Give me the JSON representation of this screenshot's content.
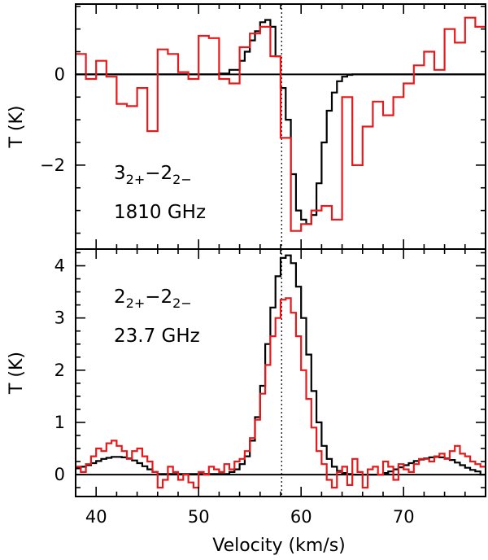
{
  "chart_data": [
    {
      "type": "line",
      "panel": "top",
      "annotation": {
        "transition": {
          "j": "3",
          "jsub": "2+",
          "dash": "−",
          "k": "2",
          "ksub": "2−"
        },
        "frequency": "1810 GHz"
      },
      "ylabel": "T (K)",
      "xlabel": "",
      "xlim": [
        38,
        78
      ],
      "ylim": [
        -3.85,
        1.55
      ],
      "x_ticks": [
        40,
        50,
        60,
        70
      ],
      "y_ticks": [
        -2,
        0
      ],
      "y_tick_labels": [
        "−2",
        "0"
      ],
      "reference_velocity": 58.1,
      "baseline": 0,
      "series": [
        {
          "color": "#000000",
          "style": "histogram",
          "x": [
            38,
            52,
            53,
            54,
            54.5,
            55,
            55.5,
            56,
            56.5,
            57,
            57.5,
            58,
            58.5,
            59,
            59.5,
            60,
            60.5,
            61,
            61.5,
            62,
            62.5,
            63,
            63.5,
            64,
            64.5,
            65,
            78
          ],
          "y": [
            0,
            0.02,
            0.1,
            0.3,
            0.5,
            0.75,
            0.95,
            1.15,
            1.2,
            1.05,
            0.4,
            -0.3,
            -1.0,
            -2.2,
            -3.0,
            -3.2,
            -3.3,
            -3.1,
            -2.4,
            -1.5,
            -0.8,
            -0.4,
            -0.15,
            -0.05,
            -0.01,
            0,
            0
          ]
        },
        {
          "color": "#e41a1c",
          "style": "histogram",
          "x": [
            38,
            39,
            40,
            41,
            42,
            43,
            44,
            45,
            46,
            47,
            48,
            49,
            50,
            51,
            52,
            53,
            54,
            55,
            56,
            57,
            58,
            59,
            60,
            61,
            62,
            63,
            64,
            65,
            66,
            67,
            68,
            69,
            70,
            71,
            72,
            73,
            74,
            75,
            76,
            77
          ],
          "y": [
            0.45,
            -0.1,
            0.3,
            -0.05,
            -0.65,
            -0.7,
            -0.3,
            -1.25,
            0.55,
            0.45,
            0.05,
            -0.1,
            0.85,
            0.8,
            -0.1,
            -0.2,
            0.6,
            0.9,
            1.05,
            0.4,
            -1.4,
            -3.45,
            -3.3,
            -3.0,
            -2.9,
            -3.2,
            -0.5,
            -2.0,
            -1.15,
            -0.6,
            -0.9,
            -0.5,
            -0.2,
            0.2,
            0.5,
            0.1,
            1.0,
            0.7,
            1.25,
            1.05
          ]
        }
      ]
    },
    {
      "type": "line",
      "panel": "bottom",
      "annotation": {
        "transition": {
          "j": "2",
          "jsub": "2+",
          "dash": "−",
          "k": "2",
          "ksub": "2−"
        },
        "frequency": "23.7 GHz"
      },
      "ylabel": "T (K)",
      "xlabel": "Velocity (km/s)",
      "xlim": [
        38,
        78
      ],
      "ylim": [
        -0.42,
        4.32
      ],
      "x_ticks": [
        40,
        50,
        60,
        70
      ],
      "y_ticks": [
        0,
        1,
        2,
        3,
        4
      ],
      "y_tick_labels": [
        "0",
        "1",
        "2",
        "3",
        "4"
      ],
      "reference_velocity": 58.1,
      "baseline": 0,
      "series": [
        {
          "color": "#000000",
          "style": "histogram",
          "x": [
            38,
            38.5,
            39,
            39.5,
            40,
            40.5,
            41,
            41.5,
            42,
            42.5,
            43,
            43.5,
            44,
            44.5,
            45,
            45.5,
            46,
            53,
            53.5,
            54,
            54.5,
            55,
            55.5,
            56,
            56.5,
            57,
            57.5,
            58,
            58.5,
            59,
            59.5,
            60,
            60.5,
            61,
            61.5,
            62,
            62.5,
            63,
            63.5,
            64,
            64.5,
            65,
            68,
            68.5,
            69,
            69.5,
            70,
            70.5,
            71,
            71.5,
            72,
            72.5,
            73,
            73.5,
            74,
            74.5,
            75,
            75.5,
            76,
            76.5,
            77,
            77.5
          ],
          "y": [
            0.12,
            0.15,
            0.18,
            0.22,
            0.26,
            0.3,
            0.32,
            0.34,
            0.34,
            0.33,
            0.31,
            0.27,
            0.22,
            0.16,
            0.1,
            0.05,
            0.01,
            0.05,
            0.1,
            0.2,
            0.35,
            0.65,
            1.1,
            1.7,
            2.5,
            3.2,
            3.8,
            4.15,
            4.2,
            4.05,
            3.6,
            3.0,
            2.3,
            1.6,
            1.0,
            0.55,
            0.3,
            0.15,
            0.07,
            0.03,
            0.01,
            0.0,
            0.03,
            0.06,
            0.1,
            0.14,
            0.18,
            0.22,
            0.26,
            0.29,
            0.31,
            0.33,
            0.34,
            0.33,
            0.31,
            0.28,
            0.23,
            0.18,
            0.13,
            0.09,
            0.06,
            0.0
          ]
        },
        {
          "color": "#e41a1c",
          "style": "histogram",
          "x": [
            38,
            38.5,
            39,
            39.5,
            40,
            40.5,
            41,
            41.5,
            42,
            42.5,
            43,
            43.5,
            44,
            44.5,
            45,
            45.5,
            46,
            46.5,
            47,
            47.5,
            48,
            48.5,
            49,
            49.5,
            50,
            50.5,
            51,
            51.5,
            52,
            52.5,
            53,
            53.5,
            54,
            54.5,
            55,
            55.5,
            56,
            56.5,
            57,
            57.5,
            58,
            58.5,
            59,
            59.5,
            60,
            60.5,
            61,
            61.5,
            62,
            62.5,
            63,
            63.5,
            64,
            64.5,
            65,
            65.5,
            66,
            66.5,
            67,
            67.5,
            68,
            68.5,
            69,
            69.5,
            70,
            70.5,
            71,
            71.5,
            72,
            72.5,
            73,
            73.5,
            74,
            74.5,
            75,
            75.5,
            76,
            76.5,
            77,
            77.5
          ],
          "y": [
            0.15,
            0.05,
            0.2,
            0.35,
            0.5,
            0.45,
            0.6,
            0.65,
            0.55,
            0.45,
            0.3,
            0.45,
            0.5,
            0.35,
            0.25,
            0.05,
            -0.25,
            -0.1,
            0.15,
            0.05,
            -0.1,
            0.0,
            -0.15,
            -0.25,
            0.05,
            0.0,
            0.15,
            0.1,
            0.05,
            0.2,
            0.1,
            0.25,
            0.3,
            0.45,
            0.7,
            1.05,
            1.55,
            2.1,
            2.65,
            3.0,
            3.35,
            3.38,
            3.1,
            2.65,
            2.0,
            1.45,
            0.9,
            0.45,
            0.2,
            -0.1,
            -0.25,
            0.05,
            0.15,
            -0.2,
            0.3,
            0.05,
            -0.25,
            0.1,
            0.15,
            0.0,
            0.25,
            0.15,
            -0.1,
            0.2,
            0.1,
            0.05,
            0.2,
            0.3,
            0.3,
            0.25,
            0.35,
            0.4,
            0.3,
            0.45,
            0.55,
            0.4,
            0.35,
            0.25,
            0.2,
            0.15
          ]
        }
      ]
    }
  ]
}
